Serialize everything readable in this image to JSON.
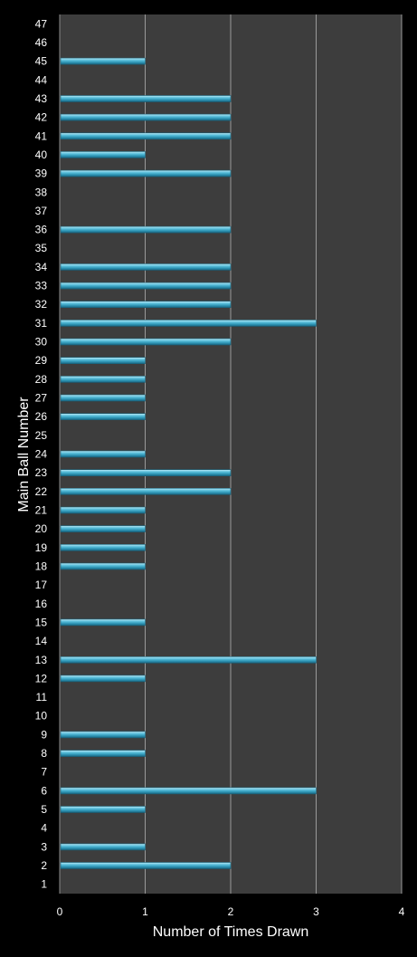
{
  "chart_data": {
    "type": "bar",
    "orientation": "horizontal",
    "title": "",
    "xlabel": "Number of Times Drawn",
    "ylabel": "Main Ball Number",
    "xlim": [
      0,
      4
    ],
    "x_ticks": [
      "0",
      "1",
      "2",
      "3",
      "4"
    ],
    "grid": true,
    "categories": [
      "1",
      "2",
      "3",
      "4",
      "5",
      "6",
      "7",
      "8",
      "9",
      "10",
      "11",
      "12",
      "13",
      "14",
      "15",
      "16",
      "17",
      "18",
      "19",
      "20",
      "21",
      "22",
      "23",
      "24",
      "25",
      "26",
      "27",
      "28",
      "29",
      "30",
      "31",
      "32",
      "33",
      "34",
      "35",
      "36",
      "37",
      "38",
      "39",
      "40",
      "41",
      "42",
      "43",
      "44",
      "45",
      "46",
      "47"
    ],
    "values": [
      0,
      2,
      1,
      0,
      1,
      3,
      0,
      1,
      1,
      0,
      0,
      1,
      3,
      0,
      1,
      0,
      0,
      1,
      1,
      1,
      1,
      2,
      2,
      1,
      0,
      1,
      1,
      1,
      1,
      2,
      3,
      2,
      2,
      2,
      0,
      2,
      0,
      0,
      2,
      1,
      2,
      2,
      2,
      0,
      1,
      0,
      0
    ],
    "colors": {
      "background": "#000000",
      "plot_area": "#3d3d3d",
      "gridline": "#9a9a9a",
      "bar": "#3aa6c4",
      "text": "#ffffff"
    }
  }
}
